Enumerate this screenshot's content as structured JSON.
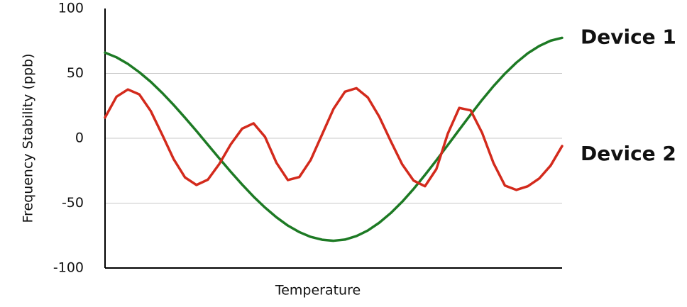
{
  "chart_data": {
    "type": "line",
    "xlabel": "Temperature",
    "ylabel": "Frequency Stability (ppb)",
    "x": [
      0,
      2.5,
      5,
      7.5,
      10,
      12.5,
      15,
      17.5,
      20,
      22.5,
      25,
      27.5,
      30,
      32.5,
      35,
      37.5,
      40,
      42.5,
      45,
      47.5,
      50,
      52.5,
      55,
      57.5,
      60,
      62.5,
      65,
      67.5,
      70,
      72.5,
      75,
      77.5,
      80,
      82.5,
      85,
      87.5,
      90,
      92.5,
      95,
      97.5,
      100
    ],
    "xlim": [
      0,
      100
    ],
    "ylim": [
      -100,
      100
    ],
    "yticks": [
      -100,
      -50,
      0,
      50,
      100
    ],
    "grid": true,
    "legend": "right",
    "series": [
      {
        "name": "Device 1",
        "color": "#1d7a24",
        "values": [
          66.0,
          62.4,
          57.3,
          50.9,
          43.5,
          35.0,
          25.7,
          15.8,
          5.6,
          -5,
          -15.5,
          -25.8,
          -35.7,
          -45.0,
          -53.4,
          -60.9,
          -67.3,
          -72.3,
          -76.0,
          -78.2,
          -79,
          -78.1,
          -75.4,
          -71.1,
          -65.1,
          -57.7,
          -49.0,
          -39.1,
          -28.3,
          -17.0,
          -5.2,
          6.6,
          18.3,
          29.6,
          40.2,
          49.8,
          58.3,
          65.5,
          71.1,
          75.2,
          77.4
        ]
      },
      {
        "name": "Device 2",
        "color": "#d32a1c",
        "values": [
          16,
          32,
          37.6,
          33.8,
          21.0,
          2.8,
          -16.0,
          -30.2,
          -36,
          -31.9,
          -19.8,
          -4.7,
          7.4,
          11.5,
          1.1,
          -18.9,
          -32.2,
          -29.9,
          -16.7,
          3,
          22.7,
          35.9,
          38.6,
          31.4,
          16.6,
          -2.1,
          -20.0,
          -32.6,
          -37,
          -23.7,
          3.6,
          23.4,
          21.5,
          4.2,
          -19.2,
          -36.5,
          -39.8,
          -37,
          -31,
          -21,
          -6
        ]
      }
    ]
  }
}
